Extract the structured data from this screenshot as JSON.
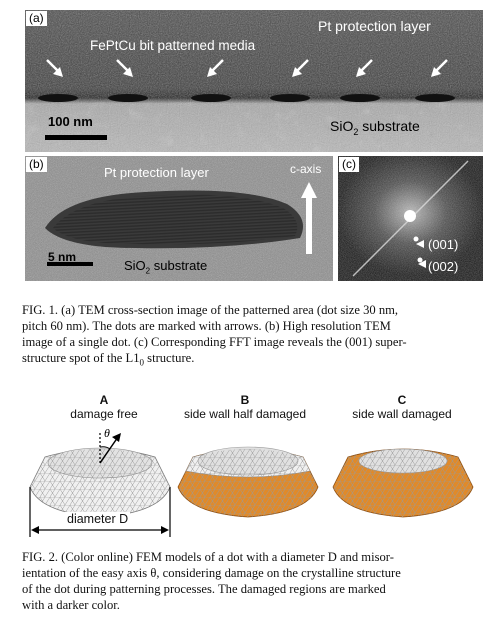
{
  "figure1": {
    "panel_a": {
      "label": "(a)",
      "protection_layer": "Pt protection layer",
      "media": "FePtCu bit patterned media",
      "scale_bar": "100 nm",
      "substrate": "SiO",
      "substrate_sub": "2",
      "substrate_suffix": " substrate"
    },
    "panel_b": {
      "label": "(b)",
      "protection_layer": "Pt protection layer",
      "axis": "c-axis",
      "scale_bar": "5 nm",
      "substrate": "SiO",
      "substrate_sub": "2",
      "substrate_suffix": " substrate"
    },
    "panel_c": {
      "label": "(c)",
      "spot1": "(001)",
      "spot2": "(002)"
    },
    "caption_line1": "FIG. 1.  (a) TEM cross-section image of the patterned area (dot size 30 nm,",
    "caption_line2": "pitch 60 nm). The dots are marked with arrows. (b) High resolution TEM",
    "caption_line3": "image of a single dot. (c) Corresponding FFT image reveals the (001) super-",
    "caption_line4_pre": "structure spot of the L1",
    "caption_line4_sub": "0",
    "caption_line4_post": " structure."
  },
  "figure2": {
    "models": [
      {
        "letter": "A",
        "title": "damage free"
      },
      {
        "letter": "B",
        "title": "side wall half damaged"
      },
      {
        "letter": "C",
        "title": "side wall damaged"
      }
    ],
    "theta": "θ",
    "diameter": "diameter D",
    "caption_line1": "FIG. 2.  (Color online) FEM models of a dot with a diameter D and misor-",
    "caption_line2": "ientation of the easy axis θ, considering damage on the crystalline structure",
    "caption_line3": "of the dot during patterning processes. The damaged regions are marked",
    "caption_line4": "with a darker color.",
    "colors": {
      "undamaged": "#e8e8e8",
      "damaged": "#e08a2a"
    }
  }
}
